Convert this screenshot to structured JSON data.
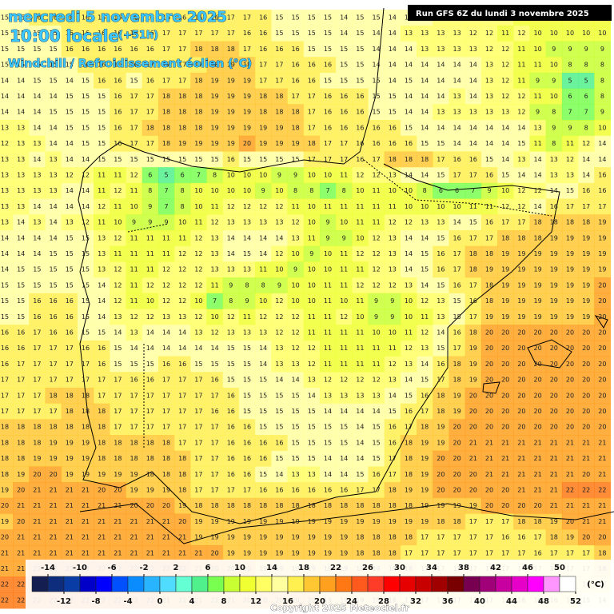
{
  "header": {
    "date": "mercredi 5 novembre 2025",
    "time": "10:00 locale",
    "lead": "(+51h)",
    "parameter": "Windchill / Refroidissement éolien (°C)",
    "run": "Run GFS 6Z du lundi 3 novembre 2025"
  },
  "grid": [
    [
      15,
      15,
      16,
      16,
      16,
      16,
      16,
      16,
      16,
      16,
      16,
      16,
      16,
      16,
      17,
      17,
      16,
      15,
      15,
      15,
      15,
      14,
      15,
      15,
      14,
      14,
      14,
      13,
      13,
      13,
      12,
      12,
      11,
      11,
      11,
      11,
      11,
      11
    ],
    [
      15,
      15,
      15,
      15,
      16,
      16,
      16,
      16,
      16,
      16,
      17,
      17,
      17,
      17,
      17,
      16,
      16,
      15,
      15,
      15,
      15,
      14,
      15,
      14,
      14,
      13,
      13,
      13,
      13,
      12,
      12,
      11,
      12,
      10,
      10,
      10,
      10,
      10
    ],
    [
      15,
      15,
      15,
      15,
      16,
      16,
      16,
      16,
      16,
      16,
      17,
      17,
      18,
      18,
      18,
      17,
      16,
      16,
      16,
      15,
      15,
      15,
      15,
      14,
      14,
      14,
      13,
      13,
      13,
      13,
      12,
      12,
      11,
      10,
      9,
      9,
      9,
      9
    ],
    [
      15,
      15,
      15,
      15,
      15,
      16,
      16,
      16,
      16,
      17,
      17,
      17,
      17,
      18,
      19,
      18,
      17,
      17,
      16,
      16,
      16,
      15,
      15,
      14,
      14,
      14,
      14,
      14,
      14,
      14,
      13,
      12,
      11,
      11,
      10,
      8,
      8,
      8
    ],
    [
      14,
      14,
      15,
      15,
      14,
      15,
      16,
      16,
      15,
      16,
      17,
      17,
      18,
      19,
      19,
      19,
      17,
      17,
      16,
      16,
      15,
      15,
      15,
      15,
      14,
      15,
      14,
      14,
      14,
      14,
      13,
      12,
      11,
      9,
      9,
      5,
      5,
      8
    ],
    [
      14,
      14,
      14,
      14,
      15,
      15,
      15,
      16,
      17,
      17,
      18,
      18,
      18,
      19,
      19,
      19,
      18,
      18,
      17,
      17,
      16,
      16,
      16,
      15,
      15,
      14,
      14,
      14,
      13,
      14,
      13,
      12,
      12,
      11,
      10,
      6,
      6,
      8
    ],
    [
      14,
      14,
      14,
      15,
      15,
      15,
      15,
      16,
      17,
      17,
      18,
      18,
      18,
      19,
      19,
      19,
      18,
      18,
      18,
      17,
      16,
      16,
      16,
      15,
      15,
      14,
      14,
      13,
      13,
      13,
      13,
      13,
      12,
      9,
      8,
      7,
      7,
      9
    ],
    [
      13,
      13,
      14,
      14,
      15,
      15,
      15,
      16,
      17,
      18,
      18,
      18,
      18,
      19,
      19,
      19,
      19,
      19,
      18,
      17,
      16,
      16,
      16,
      16,
      16,
      15,
      14,
      14,
      14,
      14,
      14,
      14,
      14,
      13,
      9,
      9,
      8,
      10
    ],
    [
      12,
      13,
      13,
      14,
      14,
      15,
      15,
      16,
      17,
      17,
      18,
      19,
      19,
      19,
      19,
      20,
      19,
      19,
      19,
      18,
      17,
      17,
      16,
      16,
      16,
      16,
      15,
      15,
      14,
      14,
      14,
      14,
      15,
      11,
      8,
      11,
      12,
      14
    ],
    [
      13,
      13,
      14,
      13,
      14,
      14,
      15,
      15,
      15,
      15,
      15,
      15,
      15,
      15,
      16,
      15,
      15,
      15,
      15,
      17,
      17,
      17,
      16,
      17,
      18,
      18,
      18,
      17,
      16,
      16,
      15,
      14,
      13,
      14,
      13,
      12,
      14,
      14
    ],
    [
      13,
      13,
      13,
      13,
      12,
      12,
      11,
      11,
      12,
      6,
      5,
      6,
      7,
      8,
      10,
      10,
      10,
      9,
      9,
      10,
      10,
      11,
      12,
      12,
      13,
      14,
      14,
      15,
      17,
      17,
      16,
      15,
      14,
      14,
      13,
      13,
      14,
      16
    ],
    [
      13,
      13,
      13,
      13,
      14,
      14,
      11,
      12,
      11,
      8,
      7,
      8,
      10,
      10,
      10,
      10,
      9,
      10,
      8,
      8,
      7,
      8,
      10,
      11,
      10,
      10,
      8,
      6,
      6,
      7,
      9,
      10,
      12,
      12,
      14,
      15,
      16,
      16
    ],
    [
      13,
      13,
      14,
      14,
      14,
      14,
      12,
      11,
      10,
      9,
      7,
      8,
      10,
      11,
      12,
      12,
      12,
      12,
      11,
      10,
      11,
      11,
      11,
      11,
      11,
      10,
      10,
      10,
      10,
      11,
      11,
      12,
      12,
      14,
      16,
      17,
      17,
      17
    ],
    [
      13,
      14,
      13,
      14,
      13,
      12,
      11,
      10,
      9,
      9,
      9,
      10,
      11,
      12,
      13,
      13,
      13,
      13,
      12,
      10,
      9,
      10,
      11,
      11,
      12,
      12,
      13,
      13,
      14,
      15,
      16,
      17,
      17,
      18,
      18,
      18,
      18,
      19
    ],
    [
      14,
      14,
      14,
      14,
      15,
      15,
      13,
      12,
      11,
      11,
      11,
      11,
      12,
      13,
      14,
      14,
      14,
      14,
      13,
      11,
      9,
      9,
      10,
      12,
      13,
      14,
      14,
      15,
      16,
      17,
      17,
      18,
      18,
      18,
      19,
      19,
      19,
      19
    ],
    [
      14,
      14,
      14,
      15,
      15,
      15,
      13,
      11,
      11,
      11,
      11,
      12,
      12,
      13,
      14,
      15,
      14,
      12,
      10,
      9,
      10,
      11,
      12,
      12,
      13,
      14,
      15,
      16,
      17,
      18,
      18,
      19,
      19,
      19,
      19,
      19,
      19,
      19
    ],
    [
      14,
      15,
      15,
      15,
      15,
      15,
      13,
      12,
      11,
      11,
      12,
      12,
      12,
      13,
      13,
      13,
      11,
      10,
      9,
      10,
      10,
      11,
      11,
      12,
      13,
      14,
      15,
      16,
      17,
      18,
      19,
      19,
      19,
      19,
      19,
      19,
      19,
      19
    ],
    [
      15,
      15,
      15,
      15,
      15,
      15,
      14,
      12,
      11,
      12,
      12,
      12,
      12,
      11,
      9,
      8,
      8,
      9,
      10,
      10,
      11,
      11,
      12,
      12,
      12,
      13,
      14,
      15,
      16,
      17,
      18,
      19,
      19,
      19,
      19,
      19,
      19,
      20
    ],
    [
      15,
      15,
      16,
      16,
      16,
      15,
      14,
      12,
      11,
      10,
      12,
      12,
      10,
      7,
      8,
      9,
      10,
      12,
      10,
      10,
      11,
      10,
      11,
      9,
      9,
      10,
      12,
      13,
      15,
      16,
      18,
      19,
      19,
      19,
      19,
      19,
      19,
      20
    ],
    [
      15,
      15,
      16,
      16,
      16,
      15,
      14,
      13,
      12,
      12,
      13,
      13,
      12,
      10,
      12,
      11,
      12,
      12,
      12,
      11,
      11,
      12,
      10,
      9,
      9,
      10,
      11,
      13,
      15,
      17,
      19,
      19,
      19,
      19,
      19,
      19,
      19,
      20
    ],
    [
      16,
      16,
      17,
      16,
      16,
      15,
      15,
      14,
      13,
      14,
      14,
      14,
      13,
      12,
      13,
      13,
      13,
      12,
      12,
      11,
      11,
      11,
      11,
      10,
      10,
      11,
      12,
      14,
      16,
      18,
      20,
      20,
      20,
      20,
      20,
      20,
      20,
      20
    ],
    [
      16,
      16,
      17,
      17,
      17,
      16,
      16,
      15,
      14,
      14,
      14,
      14,
      14,
      14,
      15,
      15,
      14,
      13,
      12,
      12,
      11,
      11,
      11,
      11,
      11,
      12,
      13,
      15,
      17,
      19,
      20,
      20,
      20,
      20,
      20,
      20,
      20,
      20
    ],
    [
      16,
      17,
      17,
      17,
      17,
      17,
      16,
      15,
      15,
      15,
      16,
      16,
      15,
      15,
      15,
      15,
      14,
      13,
      13,
      12,
      11,
      11,
      11,
      11,
      12,
      13,
      14,
      16,
      18,
      19,
      20,
      20,
      20,
      20,
      20,
      20,
      20,
      20
    ],
    [
      17,
      17,
      17,
      17,
      17,
      17,
      17,
      17,
      16,
      16,
      17,
      17,
      17,
      16,
      15,
      15,
      15,
      14,
      14,
      13,
      12,
      12,
      12,
      12,
      13,
      14,
      15,
      17,
      18,
      19,
      20,
      20,
      20,
      20,
      20,
      20,
      20,
      20
    ],
    [
      17,
      17,
      17,
      18,
      18,
      18,
      17,
      17,
      17,
      17,
      17,
      17,
      17,
      17,
      16,
      15,
      15,
      15,
      15,
      14,
      13,
      13,
      13,
      13,
      14,
      15,
      16,
      18,
      19,
      20,
      20,
      20,
      20,
      20,
      20,
      20,
      20,
      20
    ],
    [
      17,
      17,
      17,
      17,
      18,
      18,
      18,
      17,
      17,
      17,
      17,
      17,
      17,
      16,
      16,
      15,
      15,
      15,
      15,
      15,
      14,
      14,
      14,
      14,
      15,
      16,
      17,
      18,
      19,
      20,
      20,
      20,
      20,
      20,
      20,
      20,
      20,
      20
    ],
    [
      18,
      18,
      18,
      18,
      18,
      18,
      18,
      17,
      17,
      17,
      17,
      17,
      17,
      17,
      16,
      16,
      15,
      15,
      15,
      15,
      15,
      15,
      14,
      15,
      16,
      17,
      18,
      19,
      20,
      20,
      20,
      20,
      20,
      20,
      20,
      20,
      20,
      20
    ],
    [
      18,
      18,
      18,
      19,
      19,
      19,
      18,
      18,
      18,
      18,
      18,
      17,
      17,
      17,
      16,
      16,
      16,
      16,
      15,
      15,
      15,
      15,
      14,
      15,
      16,
      18,
      19,
      19,
      20,
      21,
      21,
      21,
      21,
      21,
      21,
      21,
      21,
      21
    ],
    [
      18,
      18,
      19,
      19,
      19,
      19,
      18,
      18,
      18,
      18,
      18,
      18,
      17,
      17,
      16,
      16,
      16,
      15,
      15,
      15,
      14,
      14,
      14,
      15,
      17,
      18,
      19,
      20,
      20,
      21,
      21,
      21,
      21,
      21,
      21,
      21,
      21,
      21
    ],
    [
      18,
      19,
      20,
      20,
      19,
      19,
      19,
      19,
      19,
      18,
      18,
      18,
      17,
      17,
      16,
      16,
      15,
      14,
      13,
      13,
      14,
      14,
      15,
      16,
      17,
      18,
      19,
      20,
      20,
      20,
      21,
      21,
      21,
      21,
      21,
      21,
      20,
      21
    ],
    [
      19,
      20,
      21,
      21,
      21,
      21,
      20,
      20,
      19,
      19,
      19,
      18,
      17,
      17,
      17,
      17,
      16,
      16,
      16,
      16,
      16,
      16,
      17,
      17,
      18,
      19,
      19,
      20,
      20,
      20,
      20,
      20,
      21,
      21,
      21,
      22,
      22,
      22
    ],
    [
      20,
      21,
      21,
      21,
      21,
      21,
      21,
      21,
      20,
      20,
      20,
      19,
      18,
      18,
      18,
      18,
      18,
      18,
      18,
      18,
      18,
      18,
      18,
      18,
      18,
      18,
      19,
      19,
      19,
      19,
      20,
      20,
      20,
      20,
      21,
      21,
      21,
      21
    ],
    [
      19,
      20,
      21,
      21,
      21,
      21,
      21,
      21,
      21,
      21,
      21,
      20,
      19,
      19,
      19,
      19,
      19,
      19,
      19,
      19,
      19,
      19,
      19,
      19,
      19,
      19,
      19,
      18,
      18,
      17,
      17,
      17,
      18,
      18,
      19,
      20,
      21,
      21
    ],
    [
      20,
      21,
      21,
      21,
      21,
      21,
      21,
      21,
      21,
      21,
      21,
      21,
      19,
      19,
      19,
      19,
      19,
      19,
      19,
      19,
      19,
      19,
      18,
      18,
      18,
      18,
      17,
      17,
      17,
      17,
      17,
      16,
      16,
      17,
      18,
      19,
      20,
      20
    ],
    [
      21,
      21,
      21,
      21,
      21,
      21,
      21,
      21,
      21,
      21,
      21,
      21,
      21,
      20,
      19,
      19,
      19,
      19,
      19,
      19,
      19,
      19,
      18,
      18,
      18,
      17,
      17,
      17,
      17,
      17,
      17,
      17,
      17,
      16,
      17,
      17,
      17,
      18
    ],
    [
      21,
      21,
      22,
      22,
      22,
      22,
      22,
      22,
      22,
      22,
      22,
      22,
      21,
      20,
      20,
      20,
      19,
      19,
      19,
      19,
      19,
      19,
      19,
      19,
      18,
      18,
      17,
      17,
      17,
      17,
      17,
      17,
      17,
      17,
      17,
      17,
      17,
      18
    ],
    [
      22,
      22,
      22,
      22,
      22,
      22,
      22,
      22,
      23,
      23,
      22,
      21,
      21,
      20,
      20,
      20,
      20,
      20,
      20,
      20,
      19,
      19,
      19,
      19,
      18,
      18,
      18,
      17,
      17,
      17,
      17,
      17,
      16,
      16,
      16,
      16,
      16,
      17
    ],
    [
      22,
      22,
      22,
      22,
      22,
      22,
      22,
      22,
      23,
      22,
      21,
      21,
      21,
      21,
      21,
      20,
      20,
      20,
      20,
      20,
      19,
      19,
      19,
      18,
      18,
      17,
      17,
      17,
      17,
      17,
      17,
      17,
      16,
      16,
      16,
      16,
      15,
      14
    ]
  ],
  "colorbar": {
    "ticks": [
      -14,
      -12,
      -10,
      -8,
      -6,
      -4,
      -2,
      0,
      2,
      4,
      6,
      8,
      10,
      12,
      14,
      16,
      18,
      20,
      22,
      24,
      26,
      28,
      30,
      32,
      34,
      36,
      38,
      40,
      42,
      44,
      46,
      48,
      50,
      52
    ],
    "colors": [
      "#141e50",
      "#0f2d7d",
      "#0a3ca5",
      "#0000c8",
      "#0000ff",
      "#0050ff",
      "#0a8cff",
      "#28b4ff",
      "#50dcff",
      "#64ffd2",
      "#50f08c",
      "#78ff50",
      "#c8ff32",
      "#f0ff32",
      "#ffff64",
      "#ffffa0",
      "#fff050",
      "#ffc832",
      "#ffa01e",
      "#ff7814",
      "#ff5a1e",
      "#ff3c28",
      "#ff0000",
      "#e60000",
      "#c80000",
      "#a00000",
      "#780000",
      "#780050",
      "#a00078",
      "#c800a0",
      "#e600c8",
      "#ff00ff",
      "#ff96ff",
      "#ffffff"
    ],
    "unit": "(°C)"
  },
  "copyright": "Copyright 2025 Meteociel.fr"
}
